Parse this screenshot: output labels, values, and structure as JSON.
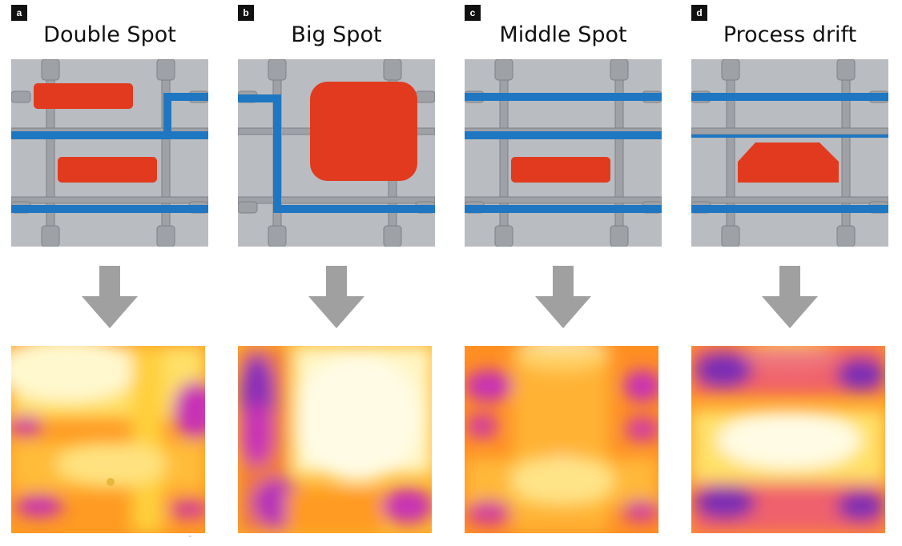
{
  "panels": [
    {
      "letter": "a",
      "title": "Double Spot"
    },
    {
      "letter": "b",
      "title": "Big Spot"
    },
    {
      "letter": "c",
      "title": "Middle Spot"
    },
    {
      "letter": "d",
      "title": "Process drift"
    }
  ],
  "footnote": "\"",
  "colors": {
    "background_gray": "#b9bcc0",
    "pipe_gray": "#9ea2a7",
    "conductor_blue": "#1f77c2",
    "defect_red": "#e23a1e",
    "arrow_gray": "#a0a0a0",
    "thermal_scale": [
      "#6a2bb0",
      "#c733b5",
      "#f0456a",
      "#ff8a1a",
      "#ffc21a",
      "#fff07a",
      "#fffbe4"
    ]
  }
}
